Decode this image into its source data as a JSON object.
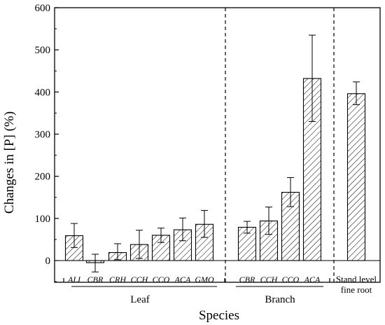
{
  "chart_data": {
    "type": "bar",
    "xlabel": "Species",
    "ylabel": "Changes in [P]  (%)",
    "ylim": [
      -50,
      600
    ],
    "yticks": [
      0,
      100,
      200,
      300,
      400,
      500,
      600
    ],
    "grid": false,
    "bar_fill": "diagonal hatch",
    "groups": [
      {
        "name": "Leaf",
        "bars": [
          {
            "category": "ALI",
            "value": 59,
            "err_low": 31,
            "err_high": 88
          },
          {
            "category": "CBR",
            "value": -5,
            "err_low": -27,
            "err_high": 15
          },
          {
            "category": "CRH",
            "value": 19,
            "err_low": 2,
            "err_high": 40
          },
          {
            "category": "CCH",
            "value": 38,
            "err_low": 5,
            "err_high": 72
          },
          {
            "category": "CCO",
            "value": 60,
            "err_low": 43,
            "err_high": 77
          },
          {
            "category": "ACA",
            "value": 73,
            "err_low": 47,
            "err_high": 101
          },
          {
            "category": "GMO",
            "value": 86,
            "err_low": 55,
            "err_high": 119
          }
        ]
      },
      {
        "name": "Branch",
        "bars": [
          {
            "category": "CBR",
            "value": 79,
            "err_low": 65,
            "err_high": 93
          },
          {
            "category": "CCH",
            "value": 94,
            "err_low": 62,
            "err_high": 127
          },
          {
            "category": "CCO",
            "value": 162,
            "err_low": 128,
            "err_high": 197
          },
          {
            "category": "ACA",
            "value": 432,
            "err_low": 330,
            "err_high": 535
          }
        ]
      },
      {
        "name": "Stand level fine root",
        "label_lines": [
          "Stand level",
          "fine root"
        ],
        "bars": [
          {
            "category": "",
            "value": 396,
            "err_low": 370,
            "err_high": 424
          }
        ]
      }
    ]
  }
}
